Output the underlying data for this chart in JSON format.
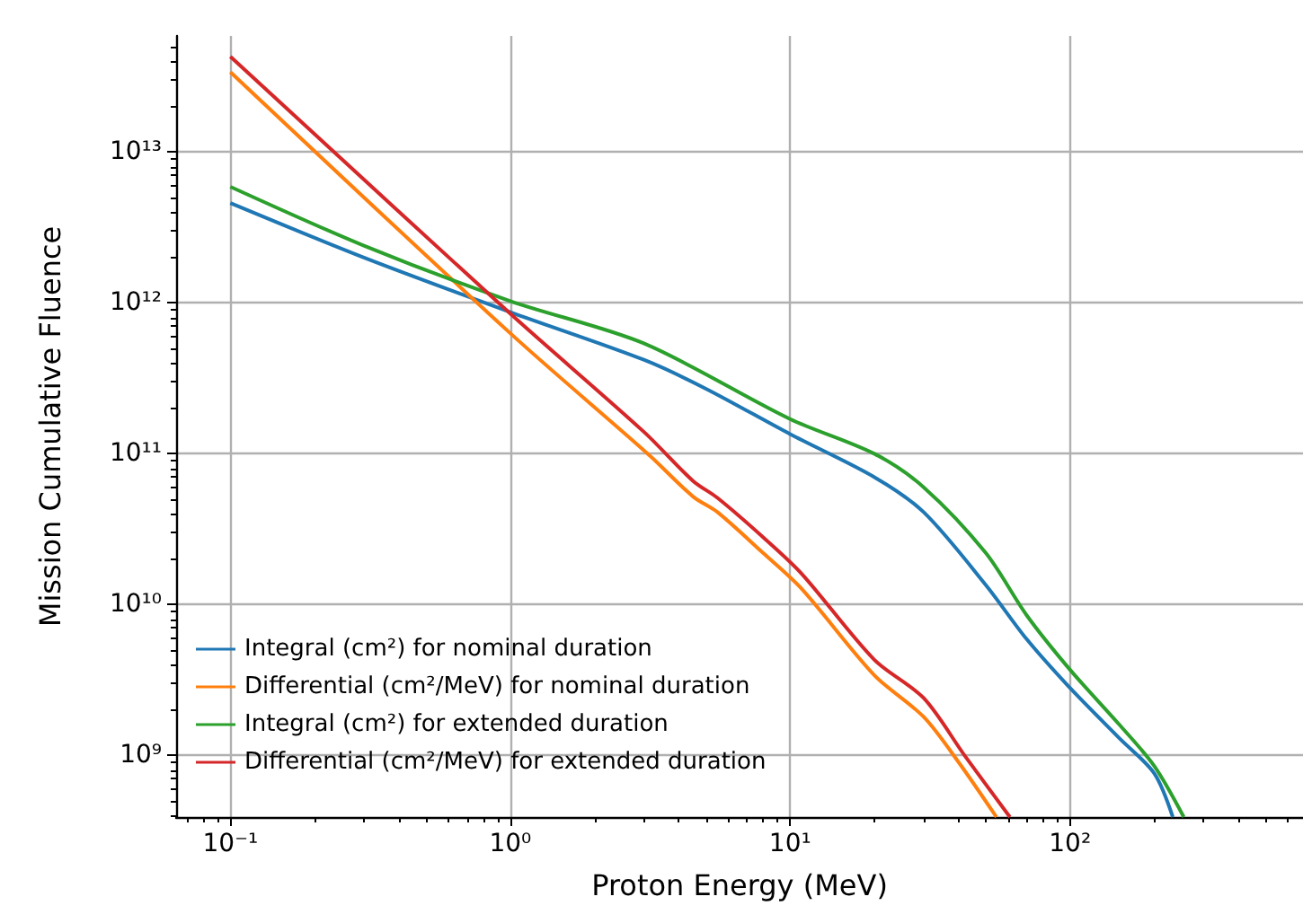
{
  "chart_data": {
    "type": "line",
    "xlabel": "Proton Energy (MeV)",
    "ylabel": "Mission Cumulative Fluence",
    "log": "xy",
    "grid": true,
    "legend": "bottom left",
    "line_style": "solid",
    "marker": "none",
    "xlim": [
      0.064,
      680
    ],
    "ylim": [
      390000000.0,
      59000000000000.0
    ],
    "xticks": [
      {
        "value": 0.1,
        "label": "10⁻¹"
      },
      {
        "value": 1,
        "label": "10⁰"
      },
      {
        "value": 10,
        "label": "10¹"
      },
      {
        "value": 100,
        "label": "10²"
      }
    ],
    "yticks": [
      {
        "value": 1000000000.0,
        "label": "10⁹"
      },
      {
        "value": 10000000000.0,
        "label": "10¹⁰"
      },
      {
        "value": 100000000000.0,
        "label": "10¹¹"
      },
      {
        "value": 1000000000000.0,
        "label": "10¹²"
      },
      {
        "value": 10000000000000.0,
        "label": "10¹³"
      }
    ],
    "series": [
      {
        "name": "Integral (cm²) for nominal duration",
        "color": "#1f77b4",
        "x": [
          0.1,
          0.3,
          1,
          3,
          5,
          10,
          20,
          30,
          50,
          70,
          100,
          150,
          200,
          233
        ],
        "values": [
          4600000000000.0,
          2000000000000.0,
          870000000000.0,
          420000000000.0,
          270000000000.0,
          135000000000.0,
          70000000000.0,
          41000000000.0,
          13500000000.0,
          5900000000.0,
          2800000000.0,
          1300000000.0,
          760000000.0,
          390000000.0
        ]
      },
      {
        "name": "Differential (cm²/MeV) for nominal duration",
        "color": "#ff7f0e",
        "x": [
          0.1,
          1,
          3.1,
          4.5,
          5.5,
          8,
          11,
          20,
          30,
          40,
          54.6
        ],
        "values": [
          34000000000000.0,
          630000000000.0,
          100000000000.0,
          52000000000.0,
          41000000000.0,
          22000000000.0,
          12700000000.0,
          3400000000.0,
          1800000000.0,
          900000000.0,
          390000000.0
        ]
      },
      {
        "name": "Integral (cm²) for extended duration",
        "color": "#2ca02c",
        "x": [
          0.1,
          0.3,
          1,
          3,
          10,
          20,
          30,
          50,
          70,
          100,
          150,
          200,
          255
        ],
        "values": [
          5900000000000.0,
          2400000000000.0,
          1030000000000.0,
          540000000000.0,
          170000000000.0,
          100000000000.0,
          60000000000.0,
          22000000000.0,
          8500000000.0,
          3700000000.0,
          1600000000.0,
          850000000.0,
          390000000.0
        ]
      },
      {
        "name": "Differential (cm²/MeV) for extended duration",
        "color": "#d62728",
        "x": [
          0.1,
          1,
          3,
          4.5,
          5.5,
          8,
          11,
          20,
          30,
          42,
          61
        ],
        "values": [
          43000000000000.0,
          850000000000.0,
          140000000000.0,
          66000000000.0,
          51000000000.0,
          28000000000.0,
          16000000000.0,
          4300000000.0,
          2400000000.0,
          1000000000.0,
          390000000.0
        ]
      }
    ]
  }
}
